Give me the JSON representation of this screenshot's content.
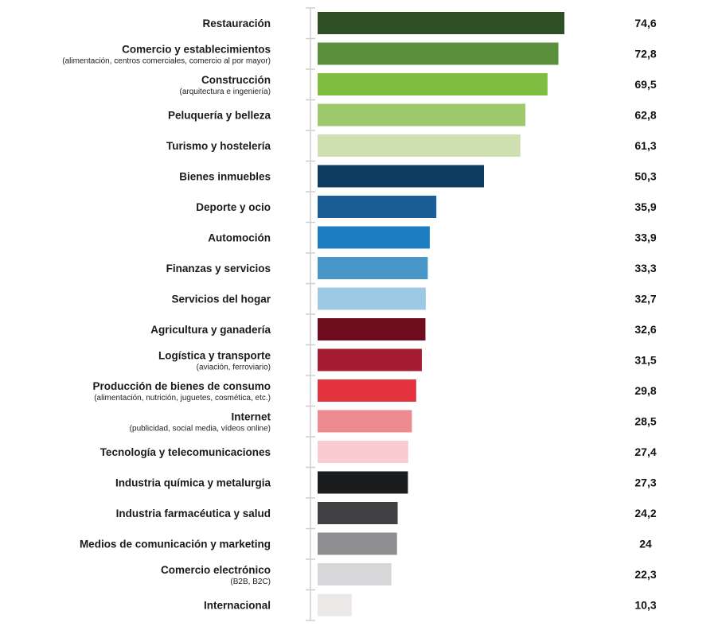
{
  "chart_data": {
    "type": "bar",
    "orientation": "horizontal",
    "title": "",
    "xlabel": "",
    "ylabel": "",
    "xlim": [
      0,
      74.6
    ],
    "grid": false,
    "categories": [
      {
        "label": "Restauración",
        "sub": "",
        "value": "74,6",
        "v": 74.6,
        "color": "#2d4f23"
      },
      {
        "label": "Comercio y establecimientos",
        "sub": "(alimentación, centros comerciales, comercio al por mayor)",
        "value": "72,8",
        "v": 72.8,
        "color": "#5b913d"
      },
      {
        "label": "Construcción",
        "sub": "(arquitectura e ingeniería)",
        "value": "69,5",
        "v": 69.5,
        "color": "#7fbd40"
      },
      {
        "label": "Peluquería y belleza",
        "sub": "",
        "value": "62,8",
        "v": 62.8,
        "color": "#9dc86c"
      },
      {
        "label": "Turismo y hostelería",
        "sub": "",
        "value": "61,3",
        "v": 61.3,
        "color": "#cfe0b0"
      },
      {
        "label": "Bienes inmuebles",
        "sub": "",
        "value": "50,3",
        "v": 50.3,
        "color": "#0d3c62"
      },
      {
        "label": "Deporte y ocio",
        "sub": "",
        "value": "35,9",
        "v": 35.9,
        "color": "#1a5e95"
      },
      {
        "label": "Automoción",
        "sub": "",
        "value": "33,9",
        "v": 33.9,
        "color": "#1c7ec0"
      },
      {
        "label": "Finanzas y servicios",
        "sub": "",
        "value": "33,3",
        "v": 33.3,
        "color": "#4996c9"
      },
      {
        "label": "Servicios del hogar",
        "sub": "",
        "value": "32,7",
        "v": 32.7,
        "color": "#9ccae4"
      },
      {
        "label": "Agricultura y ganadería",
        "sub": "",
        "value": "32,6",
        "v": 32.6,
        "color": "#6e0b1c"
      },
      {
        "label": "Logística y transporte",
        "sub": "(aviación, ferroviario)",
        "value": "31,5",
        "v": 31.5,
        "color": "#a51c31"
      },
      {
        "label": "Producción de bienes de consumo",
        "sub": "(alimentación, nutrición, juguetes, cosmética, etc.)",
        "value": "29,8",
        "v": 29.8,
        "color": "#e2333e"
      },
      {
        "label": "Internet",
        "sub": "(publicidad, social media, vídeos online)",
        "value": "28,5",
        "v": 28.5,
        "color": "#ec8a90"
      },
      {
        "label": "Tecnología y telecomunicaciones",
        "sub": "",
        "value": "27,4",
        "v": 27.4,
        "color": "#f8ccd0"
      },
      {
        "label": "Industria química y metalurgia",
        "sub": "",
        "value": "27,3",
        "v": 27.3,
        "color": "#1a1c1e"
      },
      {
        "label": "Industria farmacéutica y salud",
        "sub": "",
        "value": "24,2",
        "v": 24.2,
        "color": "#404042"
      },
      {
        "label": "Medios de comunicación y marketing",
        "sub": "",
        "value": "24",
        "v": 24,
        "color": "#8e8e91"
      },
      {
        "label": "Comercio electrónico",
        "sub": "(B2B, B2C)",
        "value": "22,3",
        "v": 22.3,
        "color": "#d7d6d9"
      },
      {
        "label": "Internacional",
        "sub": "",
        "value": "10,3",
        "v": 10.3,
        "color": "#ede8e8"
      }
    ]
  }
}
